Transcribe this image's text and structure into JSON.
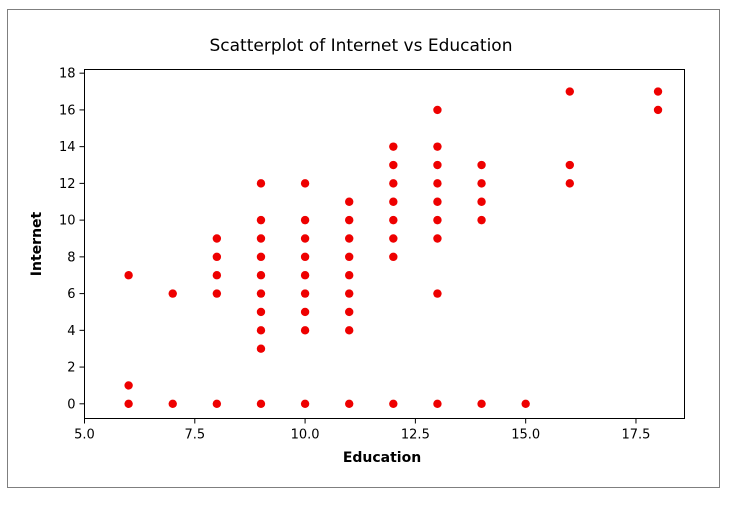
{
  "chart_data": {
    "type": "scatter",
    "title": "Scatterplot of Internet vs Education",
    "xlabel": "Education",
    "ylabel": "Internet",
    "xlim": [
      5.0,
      18.6
    ],
    "ylim": [
      -0.8,
      18.2
    ],
    "xticks": [
      5.0,
      7.5,
      10.0,
      12.5,
      15.0,
      17.5
    ],
    "xtick_labels": [
      "5.0",
      "7.5",
      "10.0",
      "12.5",
      "15.0",
      "17.5"
    ],
    "yticks": [
      0,
      2,
      4,
      6,
      8,
      10,
      12,
      14,
      16,
      18
    ],
    "ytick_labels": [
      "0",
      "2",
      "4",
      "6",
      "8",
      "10",
      "12",
      "14",
      "16",
      "18"
    ],
    "grid": false,
    "marker_color": "#ee0000",
    "points": [
      {
        "x": 6,
        "y": 7
      },
      {
        "x": 6,
        "y": 1
      },
      {
        "x": 6,
        "y": 0
      },
      {
        "x": 7,
        "y": 6
      },
      {
        "x": 7,
        "y": 0
      },
      {
        "x": 8,
        "y": 9
      },
      {
        "x": 8,
        "y": 8
      },
      {
        "x": 8,
        "y": 7
      },
      {
        "x": 8,
        "y": 6
      },
      {
        "x": 8,
        "y": 0
      },
      {
        "x": 9,
        "y": 12
      },
      {
        "x": 9,
        "y": 10
      },
      {
        "x": 9,
        "y": 9
      },
      {
        "x": 9,
        "y": 8
      },
      {
        "x": 9,
        "y": 7
      },
      {
        "x": 9,
        "y": 6
      },
      {
        "x": 9,
        "y": 5
      },
      {
        "x": 9,
        "y": 4
      },
      {
        "x": 9,
        "y": 3
      },
      {
        "x": 9,
        "y": 0
      },
      {
        "x": 10,
        "y": 12
      },
      {
        "x": 10,
        "y": 10
      },
      {
        "x": 10,
        "y": 9
      },
      {
        "x": 10,
        "y": 8
      },
      {
        "x": 10,
        "y": 7
      },
      {
        "x": 10,
        "y": 6
      },
      {
        "x": 10,
        "y": 5
      },
      {
        "x": 10,
        "y": 4
      },
      {
        "x": 10,
        "y": 0
      },
      {
        "x": 11,
        "y": 11
      },
      {
        "x": 11,
        "y": 10
      },
      {
        "x": 11,
        "y": 9
      },
      {
        "x": 11,
        "y": 8
      },
      {
        "x": 11,
        "y": 7
      },
      {
        "x": 11,
        "y": 6
      },
      {
        "x": 11,
        "y": 5
      },
      {
        "x": 11,
        "y": 4
      },
      {
        "x": 11,
        "y": 0
      },
      {
        "x": 12,
        "y": 14
      },
      {
        "x": 12,
        "y": 13
      },
      {
        "x": 12,
        "y": 12
      },
      {
        "x": 12,
        "y": 11
      },
      {
        "x": 12,
        "y": 10
      },
      {
        "x": 12,
        "y": 9
      },
      {
        "x": 12,
        "y": 8
      },
      {
        "x": 12,
        "y": 0
      },
      {
        "x": 13,
        "y": 16
      },
      {
        "x": 13,
        "y": 14
      },
      {
        "x": 13,
        "y": 13
      },
      {
        "x": 13,
        "y": 12
      },
      {
        "x": 13,
        "y": 11
      },
      {
        "x": 13,
        "y": 10
      },
      {
        "x": 13,
        "y": 9
      },
      {
        "x": 13,
        "y": 6
      },
      {
        "x": 13,
        "y": 0
      },
      {
        "x": 14,
        "y": 13
      },
      {
        "x": 14,
        "y": 12
      },
      {
        "x": 14,
        "y": 11
      },
      {
        "x": 14,
        "y": 10
      },
      {
        "x": 14,
        "y": 0
      },
      {
        "x": 15,
        "y": 0
      },
      {
        "x": 16,
        "y": 17
      },
      {
        "x": 16,
        "y": 13
      },
      {
        "x": 16,
        "y": 12
      },
      {
        "x": 18,
        "y": 17
      },
      {
        "x": 18,
        "y": 16
      }
    ]
  }
}
